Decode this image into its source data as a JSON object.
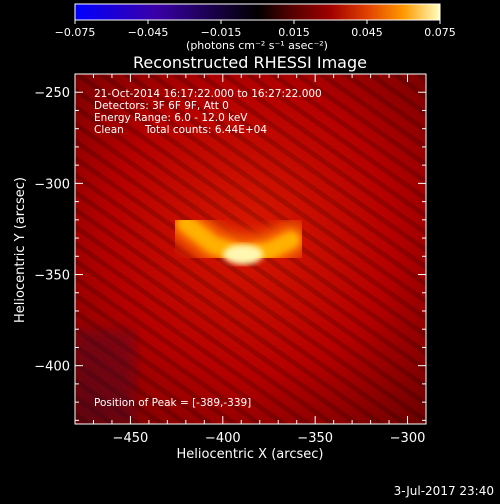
{
  "chart_data": {
    "type": "heatmap",
    "title": "Reconstructed RHESSI Image",
    "xlabel": "Heliocentric X (arcsec)",
    "ylabel": "Heliocentric Y (arcsec)",
    "xlim": [
      -480,
      -290
    ],
    "ylim": [
      -432,
      -240
    ],
    "x_ticks": [
      -450,
      -400,
      -350,
      -300
    ],
    "x_tick_labels": [
      "−450",
      "−400",
      "−350",
      "−300"
    ],
    "y_ticks": [
      -250,
      -300,
      -350,
      -400
    ],
    "y_tick_labels": [
      "−250",
      "−300",
      "−350",
      "−400"
    ],
    "colorbar": {
      "range": [
        -0.075,
        0.075
      ],
      "ticks": [
        -0.075,
        -0.045,
        -0.015,
        0.015,
        0.045,
        0.075
      ],
      "tick_labels": [
        "−0.075",
        "−0.045",
        "−0.015",
        "0.015",
        "0.045",
        "0.075"
      ],
      "unit_label": "(photons cm⁻² s⁻¹ asec⁻²)",
      "colormap": [
        "#0000ff",
        "#3a00a8",
        "#000000",
        "#4a0000",
        "#a00000",
        "#e04000",
        "#ff9900",
        "#ffffc0"
      ]
    },
    "annotations": {
      "time_range": "21-Oct-2014 16:17:22.000 to 16:27:22.000",
      "detectors": "Detectors: 3F 6F 9F, Att 0",
      "energy": "Energy Range: 6.0 - 12.0 keV",
      "method": "Clean",
      "counts": "Total counts: 6.44E+04",
      "peak": "Position of Peak = [-389,-339]"
    },
    "peak": {
      "x": -389,
      "y": -339
    },
    "source_shape": [
      {
        "x": -420,
        "y": -322,
        "value": 0.04
      },
      {
        "x": -405,
        "y": -334,
        "value": 0.055
      },
      {
        "x": -389,
        "y": -339,
        "value": 0.075
      },
      {
        "x": -375,
        "y": -337,
        "value": 0.065
      },
      {
        "x": -363,
        "y": -331,
        "value": 0.055
      }
    ]
  },
  "footer": {
    "timestamp": "3-Jul-2017 23:40"
  }
}
